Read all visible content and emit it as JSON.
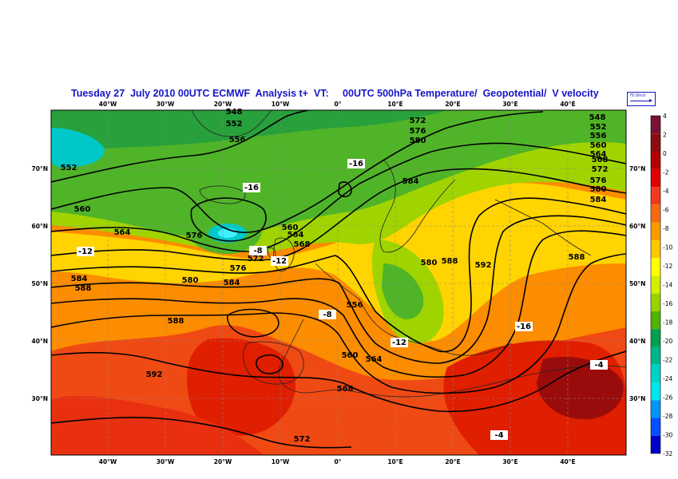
{
  "title": "Tuesday 27  July 2010 00UTC ECMWF  Analysis t+  VT:     00UTC 500hPa Temperature/  Geopotential/  V velocity",
  "wind_key_label": "75.0m/s",
  "top_axis_labels": [
    "40°W",
    "30°W",
    "20°W",
    "10°W",
    "0°",
    "10°E",
    "20°E",
    "30°E",
    "40°E"
  ],
  "bottom_axis_labels": [
    "40°W",
    "30°W",
    "20°W",
    "10°W",
    "0°",
    "10°E",
    "20°E",
    "30°E",
    "40°E"
  ],
  "left_axis_labels": [
    "70°N",
    "60°N",
    "50°N",
    "40°N",
    "30°N"
  ],
  "right_axis_labels": [
    "70°N",
    "60°N",
    "50°N",
    "40°N",
    "30°N"
  ],
  "legend": {
    "labels": [
      "4",
      "2",
      "0",
      "-2",
      "-4",
      "-6",
      "-8",
      "-10",
      "-12",
      "-14",
      "-16",
      "-18",
      "-20",
      "-22",
      "-24",
      "-26",
      "-28",
      "-30",
      "-32"
    ],
    "colors": [
      "#7a1238",
      "#8b0d10",
      "#b40000",
      "#e00000",
      "#f03a1c",
      "#f86a10",
      "#fc9a00",
      "#ffc800",
      "#ffff00",
      "#d2f000",
      "#9ad200",
      "#50b400",
      "#00a050",
      "#00b48c",
      "#00d2c8",
      "#00e6f0",
      "#0096ff",
      "#0050ff",
      "#0000c8"
    ]
  },
  "geopotential_labels": [
    "548",
    "552",
    "556",
    "552",
    "560",
    "564",
    "568",
    "572",
    "576",
    "580",
    "584",
    "588",
    "592",
    "548",
    "552",
    "556",
    "560",
    "564",
    "568",
    "572",
    "576",
    "580",
    "584",
    "588",
    "560",
    "564",
    "568",
    "572",
    "576",
    "580",
    "584",
    "588",
    "592",
    "556",
    "560",
    "564",
    "568",
    "572",
    "576",
    "580",
    "584",
    "588",
    "592",
    "588",
    "592",
    "556",
    "560",
    "564",
    "568",
    "572",
    "576",
    "580",
    "584",
    "588",
    "592"
  ],
  "temperature_labels": [
    "-16",
    "-16",
    "-12",
    "-12",
    "-12",
    "-16",
    "-4",
    "-4",
    "-8",
    "-8"
  ]
}
